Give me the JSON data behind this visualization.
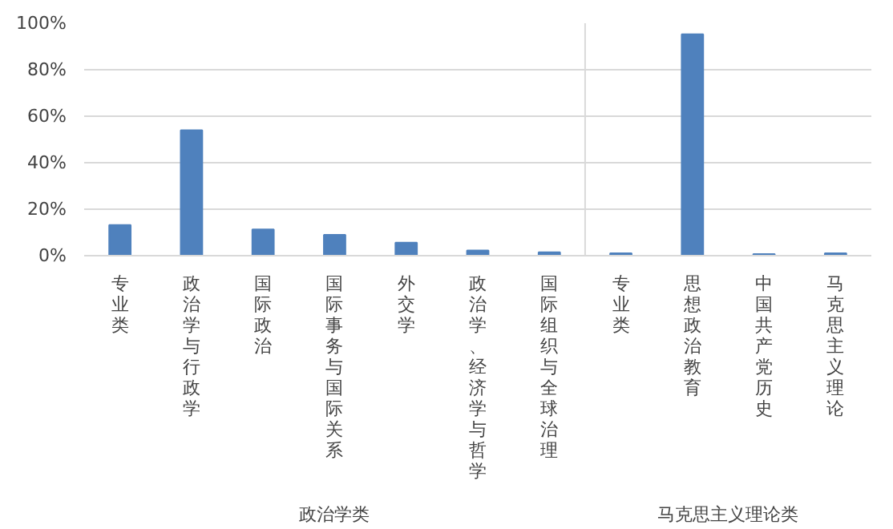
{
  "chart_data": {
    "type": "bar",
    "categories": [
      "专业类",
      "政治学与行政学",
      "国际政治",
      "国际事务与国际关系",
      "外交学",
      "政治学、经济学与哲学",
      "国际组织与全球治理",
      "专业类",
      "思想政治教育",
      "中国共产党历史",
      "马克思主义理论"
    ],
    "values": [
      13.2,
      54,
      11.3,
      9,
      5.6,
      2.2,
      1.5,
      1,
      95.3,
      0.7,
      1
    ],
    "color": "#4f81bd",
    "ylim": [
      0,
      100
    ],
    "yticks": [
      {
        "value": 0,
        "label": "0%"
      },
      {
        "value": 20,
        "label": "20%"
      },
      {
        "value": 40,
        "label": "40%"
      },
      {
        "value": 60,
        "label": "60%"
      },
      {
        "value": 80,
        "label": "80%"
      },
      {
        "value": 100,
        "label": "100%"
      }
    ],
    "grid": "y",
    "annotations": [
      "政治学类",
      "马克思主义理论类"
    ]
  }
}
